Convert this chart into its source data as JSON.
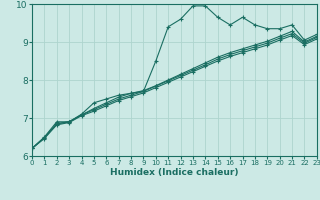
{
  "xlabel": "Humidex (Indice chaleur)",
  "xlim": [
    0,
    23
  ],
  "ylim": [
    6,
    10
  ],
  "xticks": [
    0,
    1,
    2,
    3,
    4,
    5,
    6,
    7,
    8,
    9,
    10,
    11,
    12,
    13,
    14,
    15,
    16,
    17,
    18,
    19,
    20,
    21,
    22,
    23
  ],
  "yticks": [
    6,
    7,
    8,
    9,
    10
  ],
  "bg_color": "#cce9e5",
  "line_color": "#1a6e62",
  "grid_color": "#aed4ce",
  "line1_x": [
    0,
    1,
    2,
    3,
    4,
    5,
    6,
    7,
    8,
    9,
    10,
    11,
    12,
    13,
    14,
    15,
    16,
    17,
    18,
    19,
    20,
    21,
    22,
    23
  ],
  "line1_y": [
    6.2,
    6.5,
    6.9,
    6.9,
    7.1,
    7.4,
    7.5,
    7.6,
    7.65,
    7.7,
    8.5,
    9.4,
    9.6,
    9.95,
    9.95,
    9.65,
    9.45,
    9.65,
    9.45,
    9.35,
    9.35,
    9.45,
    9.05,
    9.2
  ],
  "line2_x": [
    0,
    1,
    2,
    3,
    4,
    5,
    6,
    7,
    8,
    9,
    10,
    11,
    12,
    13,
    14,
    15,
    16,
    17,
    18,
    19,
    20,
    21,
    22,
    23
  ],
  "line2_y": [
    6.2,
    6.48,
    6.85,
    6.9,
    7.08,
    7.25,
    7.4,
    7.55,
    7.65,
    7.72,
    7.85,
    8.0,
    8.15,
    8.3,
    8.45,
    8.6,
    8.72,
    8.82,
    8.92,
    9.02,
    9.15,
    9.28,
    9.0,
    9.15
  ],
  "line3_x": [
    0,
    1,
    2,
    3,
    4,
    5,
    6,
    7,
    8,
    9,
    10,
    11,
    12,
    13,
    14,
    15,
    16,
    17,
    18,
    19,
    20,
    21,
    22,
    23
  ],
  "line3_y": [
    6.2,
    6.48,
    6.85,
    6.9,
    7.08,
    7.22,
    7.36,
    7.5,
    7.6,
    7.7,
    7.84,
    7.98,
    8.12,
    8.26,
    8.4,
    8.55,
    8.67,
    8.77,
    8.87,
    8.97,
    9.1,
    9.22,
    8.97,
    9.12
  ],
  "line4_x": [
    0,
    1,
    2,
    3,
    4,
    5,
    6,
    7,
    8,
    9,
    10,
    11,
    12,
    13,
    14,
    15,
    16,
    17,
    18,
    19,
    20,
    21,
    22,
    23
  ],
  "line4_y": [
    6.2,
    6.46,
    6.82,
    6.88,
    7.06,
    7.18,
    7.32,
    7.46,
    7.56,
    7.66,
    7.8,
    7.94,
    8.08,
    8.22,
    8.36,
    8.5,
    8.62,
    8.72,
    8.82,
    8.92,
    9.05,
    9.17,
    8.93,
    9.08
  ]
}
